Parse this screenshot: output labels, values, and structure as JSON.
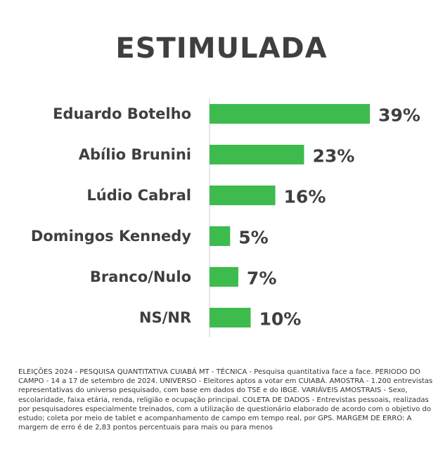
{
  "chart_data": {
    "type": "bar",
    "orientation": "horizontal",
    "title": "ESTIMULADA",
    "categories": [
      "Eduardo Botelho",
      "Abílio Brunini",
      "Lúdio Cabral",
      "Domingos Kennedy",
      "Branco/Nulo",
      "NS/NR"
    ],
    "values": [
      39,
      23,
      16,
      5,
      7,
      10
    ],
    "value_labels": [
      "39%",
      "23%",
      "16%",
      "5%",
      "7%",
      "10%"
    ],
    "xlim": [
      0,
      39
    ],
    "grid": false,
    "bar_color": "#3dbb4d"
  },
  "footnote": "ELEIÇÕES 2024 - PESQUISA QUANTITATIVA CUIABÁ MT - TÉCNICA - Pesquisa quantitativa face a face. PERIODO DO CAMPO - 14 a 17 de setembro de 2024. UNIVERSO - Eleitores aptos a votar em CUIABÁ. AMOSTRA - 1.200 entrevistas representativas do universo pesquisado, com base em dados do TSE e do IBGE. VARIÁVEIS AMOSTRAIS - Sexo, escolaridade, faixa etária, renda, religião e ocupação principal. COLETA DE DADOS - Entrevistas pessoais, realizadas por pesquisadores especialmente treinados, com a utilização de questionário elaborado de acordo com o objetivo do estudo; coleta por meio de tablet e acompanhamento de campo em tempo real, por GPS. MARGEM DE ERRO: A margem de erro é de 2,83 pontos percentuais para mais ou para menos"
}
